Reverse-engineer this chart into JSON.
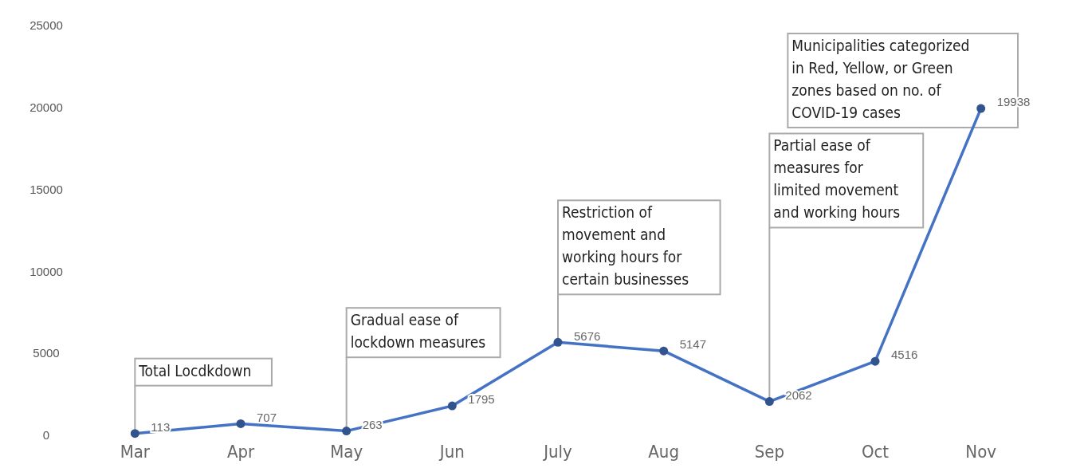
{
  "chart_data": {
    "type": "line",
    "categories": [
      "Mar",
      "Apr",
      "May",
      "Jun",
      "July",
      "Aug",
      "Sep",
      "Oct",
      "Nov"
    ],
    "series": [
      {
        "color": "#4472c4",
        "values": [
          113,
          707,
          263,
          1795,
          5676,
          5147,
          2062,
          4516,
          19938
        ]
      }
    ],
    "ylim": [
      0,
      25000
    ],
    "yticks": [
      0,
      5000,
      10000,
      15000,
      20000,
      25000
    ],
    "marker": "circle",
    "data_labels": true,
    "annotations": [
      {
        "text": "Total Locdkdown",
        "x": "Mar",
        "y": 113
      },
      {
        "text": "Gradual ease of lockdown measures",
        "x": "May",
        "y": 263
      },
      {
        "text": "Restriction of movement and working hours for certain businesses",
        "x": "July",
        "y": 5676
      },
      {
        "text": "Partial ease of measures for limited movement and working hours",
        "x": "Sep",
        "y": 2062
      },
      "Municipalities categorized in Red, Yellow, or Green zones based on no. of COVID-19 cases"
    ]
  }
}
